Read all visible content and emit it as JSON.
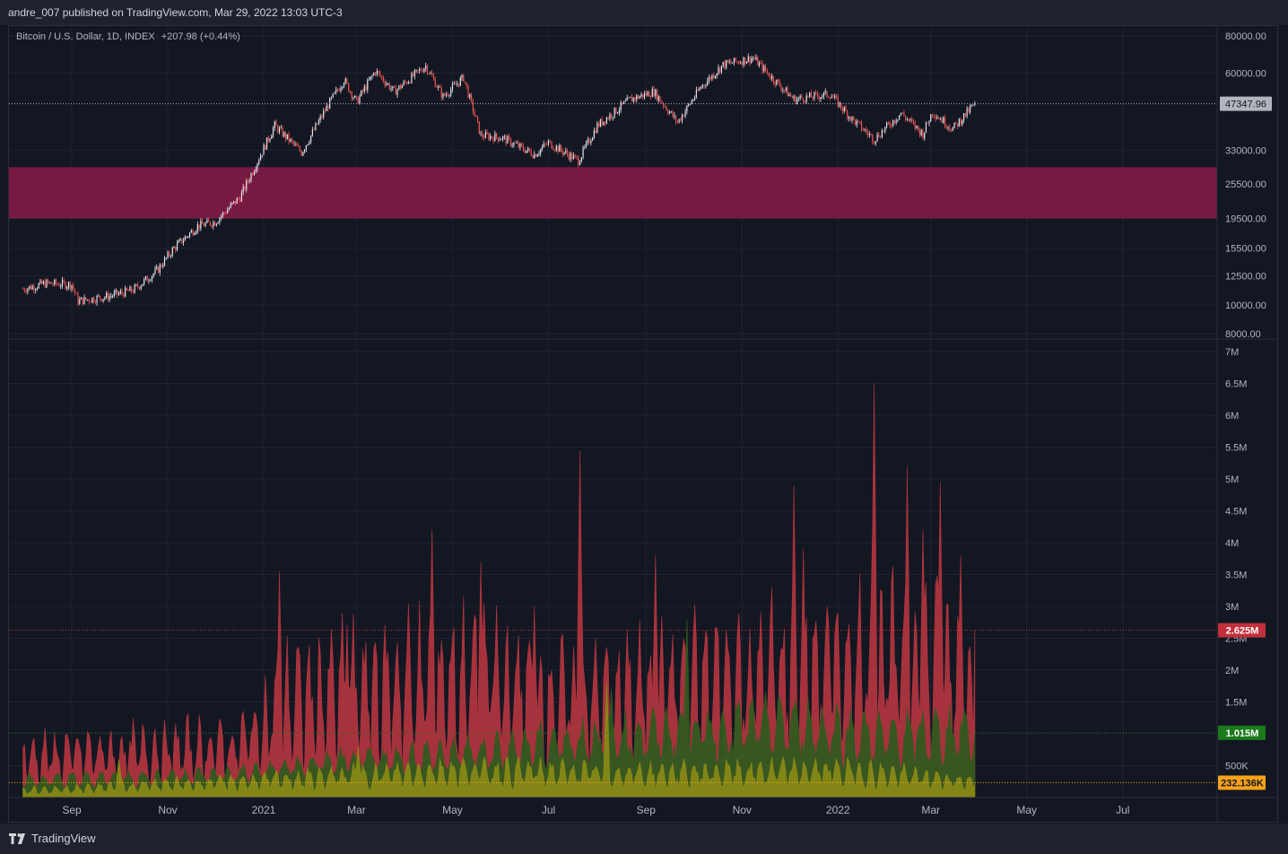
{
  "header": {
    "published_text": "andre_007 published on TradingView.com, Mar 29, 2022 13:03 UTC-3"
  },
  "legend": {
    "symbol": "Bitcoin / U.S. Dollar, 1D, INDEX",
    "change": "+207.98 (+0.44%)"
  },
  "footer": {
    "brand": "TradingView"
  },
  "colors": {
    "background": "#131722",
    "grid": "#1f2330",
    "up_candle": "#e0e3eb",
    "down_candle": "#ef5350",
    "zone": "#7b1a43",
    "red_volume": "#b2353f",
    "green_volume": "#2f5a1e",
    "yellow_volume": "#8a8a16"
  },
  "chart_data": [
    {
      "type": "candlestick",
      "name": "Bitcoin / U.S. Dollar, 1D, INDEX",
      "scale": "log",
      "y_ticks": [
        "80000.00",
        "60000.00",
        "33000.00",
        "25500.00",
        "19500.00",
        "15500.00",
        "12500.00",
        "10000.00",
        "8000.00"
      ],
      "y_tick_values": [
        80000,
        60000,
        33000,
        25500,
        19500,
        15500,
        12500,
        10000,
        8000
      ],
      "x_ticks": [
        "Sep",
        "Nov",
        "2021",
        "Mar",
        "May",
        "Jul",
        "Sep",
        "Nov",
        "2022",
        "Mar",
        "May",
        "Jul"
      ],
      "last_price_label": "47347.96",
      "last_price": 47347.96,
      "highlight_zone": [
        19500,
        29000
      ],
      "close_path": [
        [
          "2020-08-01",
          11300
        ],
        [
          "2020-08-15",
          11800
        ],
        [
          "2020-09-01",
          11700
        ],
        [
          "2020-09-05",
          10300
        ],
        [
          "2020-09-25",
          10700
        ],
        [
          "2020-10-10",
          11200
        ],
        [
          "2020-10-25",
          13000
        ],
        [
          "2020-11-05",
          15500
        ],
        [
          "2020-11-20",
          18400
        ],
        [
          "2020-12-01",
          19000
        ],
        [
          "2020-12-17",
          23000
        ],
        [
          "2021-01-08",
          40000
        ],
        [
          "2021-01-25",
          32500
        ],
        [
          "2021-02-10",
          46000
        ],
        [
          "2021-02-21",
          57000
        ],
        [
          "2021-03-01",
          48000
        ],
        [
          "2021-03-13",
          61000
        ],
        [
          "2021-03-25",
          52000
        ],
        [
          "2021-04-14",
          63500
        ],
        [
          "2021-04-25",
          50000
        ],
        [
          "2021-05-08",
          58000
        ],
        [
          "2021-05-19",
          37000
        ],
        [
          "2021-06-01",
          36500
        ],
        [
          "2021-06-22",
          32000
        ],
        [
          "2021-07-01",
          35000
        ],
        [
          "2021-07-20",
          30500
        ],
        [
          "2021-08-01",
          40000
        ],
        [
          "2021-08-22",
          49000
        ],
        [
          "2021-09-06",
          52000
        ],
        [
          "2021-09-21",
          41000
        ],
        [
          "2021-10-06",
          54000
        ],
        [
          "2021-10-20",
          64000
        ],
        [
          "2021-11-08",
          67500
        ],
        [
          "2021-11-20",
          58000
        ],
        [
          "2021-12-04",
          49000
        ],
        [
          "2021-12-27",
          51000
        ],
        [
          "2022-01-10",
          42000
        ],
        [
          "2022-01-24",
          36000
        ],
        [
          "2022-02-10",
          44000
        ],
        [
          "2022-02-24",
          37500
        ],
        [
          "2022-03-02",
          44500
        ],
        [
          "2022-03-15",
          39000
        ],
        [
          "2022-03-29",
          47347.96
        ]
      ]
    },
    {
      "type": "area",
      "name": "volume",
      "y_ticks": [
        "7M",
        "6.5M",
        "6M",
        "5.5M",
        "5M",
        "4.5M",
        "4M",
        "3.5M",
        "3M",
        "2.5M",
        "2M",
        "1.5M",
        "1M",
        "500K"
      ],
      "y_tick_values": [
        7000000,
        6500000,
        6000000,
        5500000,
        5000000,
        4500000,
        4000000,
        3500000,
        3000000,
        2500000,
        2000000,
        1500000,
        1000000,
        500000
      ],
      "x_ticks": [
        "Sep",
        "Nov",
        "2021",
        "Mar",
        "May",
        "Jul",
        "Sep",
        "Nov",
        "2022",
        "Mar",
        "May",
        "Jul"
      ],
      "series": [
        {
          "key": "red",
          "last_label": "2.625M",
          "last_value": 2625000,
          "baseline": [
            [
              "2020-08-01",
              600000
            ],
            [
              "2020-12-15",
              750000
            ],
            [
              "2021-01-15",
              1400000
            ],
            [
              "2021-03-01",
              1600000
            ],
            [
              "2021-05-15",
              1800000
            ],
            [
              "2021-07-15",
              1400000
            ],
            [
              "2021-09-15",
              1600000
            ],
            [
              "2021-11-15",
              1800000
            ],
            [
              "2022-01-15",
              2000000
            ],
            [
              "2022-03-29",
              1900000
            ]
          ],
          "spikes": [
            [
              "2021-01-11",
              3550000
            ],
            [
              "2021-02-23",
              2700000
            ],
            [
              "2021-04-18",
              4200000
            ],
            [
              "2021-05-19",
              3700000
            ],
            [
              "2021-06-22",
              3000000
            ],
            [
              "2021-07-21",
              5450000
            ],
            [
              "2021-09-07",
              3800000
            ],
            [
              "2021-12-04",
              4900000
            ],
            [
              "2021-12-10",
              3900000
            ],
            [
              "2022-01-24",
              6500000
            ],
            [
              "2022-02-14",
              5200000
            ],
            [
              "2022-02-24",
              4200000
            ],
            [
              "2022-03-07",
              4950000
            ],
            [
              "2022-03-20",
              3800000
            ]
          ]
        },
        {
          "key": "green",
          "last_label": "1.015M",
          "last_value": 1015000,
          "baseline": [
            [
              "2020-08-01",
              250000
            ],
            [
              "2020-12-15",
              350000
            ],
            [
              "2021-02-01",
              500000
            ],
            [
              "2021-05-01",
              650000
            ],
            [
              "2021-08-01",
              900000
            ],
            [
              "2021-10-01",
              1000000
            ],
            [
              "2021-12-01",
              1100000
            ],
            [
              "2022-02-01",
              900000
            ],
            [
              "2022-03-29",
              1015000
            ]
          ],
          "spikes": [
            [
              "2021-09-27",
              2800000
            ],
            [
              "2021-08-10",
              1700000
            ]
          ]
        },
        {
          "key": "yellow",
          "last_label": "232.136K",
          "last_value": 232136,
          "baseline": [
            [
              "2020-08-01",
              100000
            ],
            [
              "2021-01-01",
              250000
            ],
            [
              "2021-05-01",
              400000
            ],
            [
              "2021-09-01",
              350000
            ],
            [
              "2022-01-01",
              400000
            ],
            [
              "2022-03-29",
              232136
            ]
          ],
          "spikes": [
            [
              "2020-10-01",
              600000
            ],
            [
              "2021-03-02",
              800000
            ],
            [
              "2021-08-07",
              1800000
            ]
          ]
        }
      ]
    }
  ]
}
